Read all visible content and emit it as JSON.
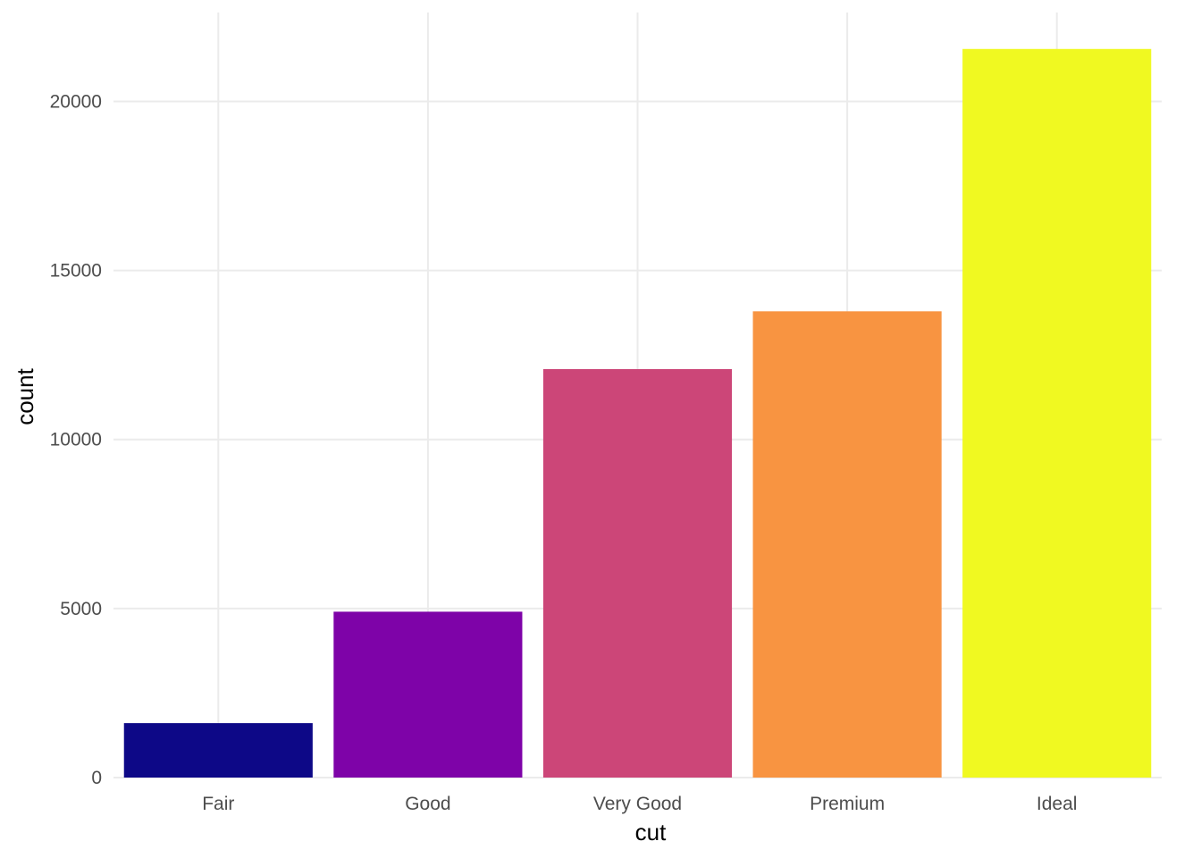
{
  "chart_data": {
    "type": "bar",
    "title": "",
    "xlabel": "cut",
    "ylabel": "count",
    "categories": [
      "Fair",
      "Good",
      "Very Good",
      "Premium",
      "Ideal"
    ],
    "values": [
      1610,
      4906,
      12082,
      13791,
      21551
    ],
    "colors": [
      "#0D0887",
      "#7E03A8",
      "#CC4678",
      "#F89441",
      "#F0F921"
    ],
    "ylim": [
      0,
      22629
    ],
    "yticks": [
      0,
      5000,
      10000,
      15000,
      20000
    ],
    "ytick_labels": [
      "0",
      "5000",
      "10000",
      "15000",
      "20000"
    ],
    "grid": true,
    "legend": "none",
    "theme_colors": {
      "grid": "#ebebeb",
      "tick_text": "#4d4d4d",
      "axis_title": "#000000",
      "background": "#ffffff"
    }
  }
}
